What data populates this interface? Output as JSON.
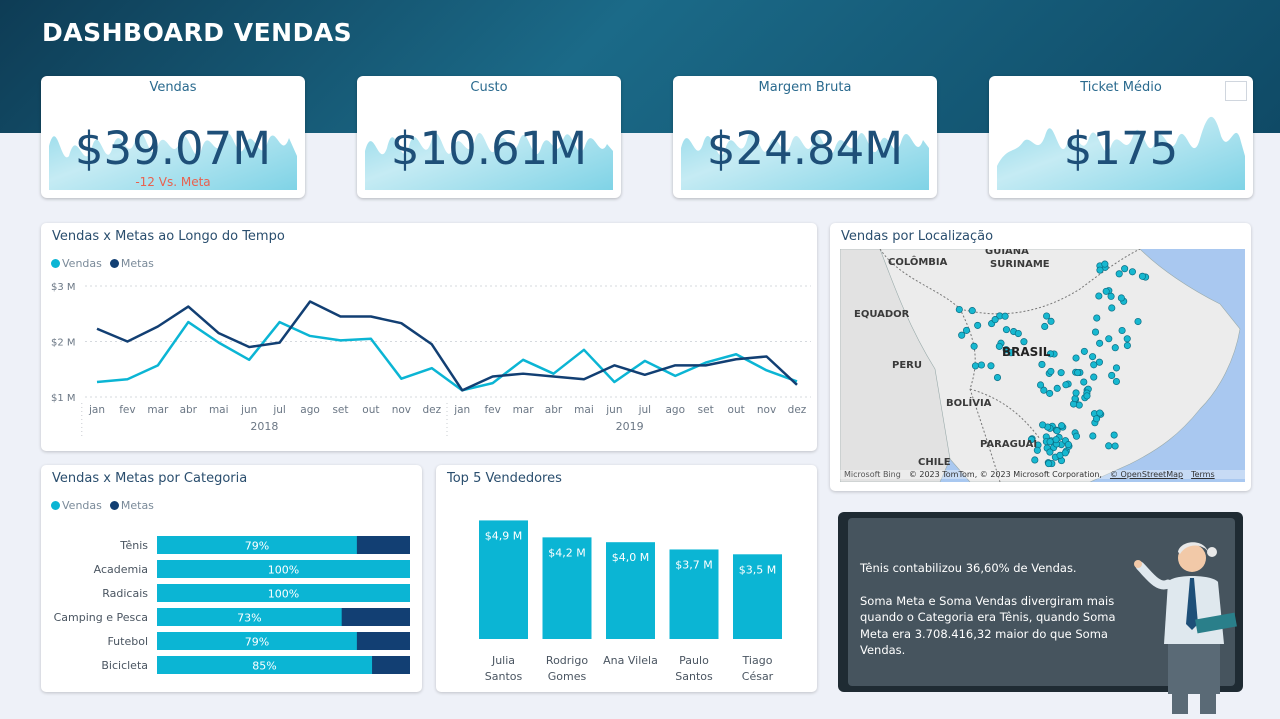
{
  "header": {
    "title": "DASHBOARD VENDAS"
  },
  "kpis": [
    {
      "label": "Vendas",
      "value": "$39.07M",
      "sub": "-12 Vs. Meta"
    },
    {
      "label": "Custo",
      "value": "$10.61M",
      "sub": ""
    },
    {
      "label": "Margem Bruta",
      "value": "$24.84M",
      "sub": ""
    },
    {
      "label": "Ticket Médio",
      "value": "$175",
      "sub": ""
    }
  ],
  "colors": {
    "vendas": "#0bb5d4",
    "metas": "#123f73",
    "kpi_value": "#1e4f78",
    "negative": "#e8614f",
    "spark": "#7fd3e6"
  },
  "chart_data": [
    {
      "type": "line",
      "title": "Vendas x Metas ao Longo do Tempo",
      "legend": "top-left",
      "x": [
        "jan",
        "fev",
        "mar",
        "abr",
        "mai",
        "jun",
        "jul",
        "ago",
        "set",
        "out",
        "nov",
        "dez",
        "jan",
        "fev",
        "mar",
        "abr",
        "mai",
        "jun",
        "jul",
        "ago",
        "set",
        "out",
        "nov",
        "dez"
      ],
      "year_groups": [
        {
          "label": "2018",
          "count": 12
        },
        {
          "label": "2019",
          "count": 12
        }
      ],
      "yticks": [
        "$3 M",
        "$2 M",
        "$1 M"
      ],
      "ylim": [
        1,
        3
      ],
      "grid": true,
      "series": [
        {
          "name": "Vendas",
          "values": [
            1.27,
            1.32,
            1.57,
            2.35,
            1.98,
            1.67,
            2.35,
            2.1,
            2.02,
            2.05,
            1.33,
            1.52,
            1.12,
            1.25,
            1.67,
            1.42,
            1.85,
            1.27,
            1.65,
            1.38,
            1.62,
            1.77,
            1.48,
            1.28
          ]
        },
        {
          "name": "Metas",
          "values": [
            2.23,
            2.0,
            2.27,
            2.63,
            2.15,
            1.9,
            1.98,
            2.72,
            2.45,
            2.45,
            2.33,
            1.95,
            1.12,
            1.37,
            1.42,
            1.37,
            1.32,
            1.57,
            1.4,
            1.57,
            1.57,
            1.68,
            1.73,
            1.22
          ]
        }
      ]
    },
    {
      "type": "bar",
      "orientation": "horizontal",
      "title": "Vendas x Metas por Categoria",
      "legend": "top-left",
      "categories": [
        "Tênis",
        "Academia",
        "Radicais",
        "Camping e Pesca",
        "Futebol",
        "Bicicleta"
      ],
      "series": [
        {
          "name": "Vendas",
          "values": [
            79,
            100,
            100,
            73,
            79,
            85
          ]
        },
        {
          "name": "Metas",
          "values": [
            100,
            100,
            100,
            100,
            100,
            100
          ]
        }
      ],
      "labels": [
        "79%",
        "100%",
        "100%",
        "73%",
        "79%",
        "85%"
      ]
    },
    {
      "type": "bar",
      "title": "Top 5 Vendedores",
      "categories": [
        [
          "Julia",
          "Santos"
        ],
        [
          "Rodrigo",
          "Gomes"
        ],
        [
          "Ana Vilela"
        ],
        [
          "Paulo",
          "Santos"
        ],
        [
          "Tiago",
          "César"
        ]
      ],
      "values": [
        4.9,
        4.2,
        4.0,
        3.7,
        3.5
      ],
      "labels": [
        "$4,9 M",
        "$4,2 M",
        "$4,0 M",
        "$3,7 M",
        "$3,5 M"
      ],
      "ylim": [
        0,
        5
      ]
    }
  ],
  "map": {
    "title": "Vendas por Localização",
    "labels": [
      "GUIANA",
      "COLÔMBIA",
      "SURINAME",
      "EQUADOR",
      "BRASIL",
      "PERU",
      "BOLÍVIA",
      "PARAGUAI",
      "CHILE"
    ],
    "bing": "Microsoft Bing",
    "attribution": "© 2023 TomTom, © 2023 Microsoft Corporation,",
    "osm": "© OpenStreetMap",
    "terms": "Terms"
  },
  "insight": {
    "line1": "Tênis contabilizou 36,60% de Vendas.",
    "line2": "Soma Meta e Soma Vendas divergiram mais quando o Categoria era Tênis, quando Soma Meta era 3.708.416,32 maior do que Soma Vendas."
  }
}
